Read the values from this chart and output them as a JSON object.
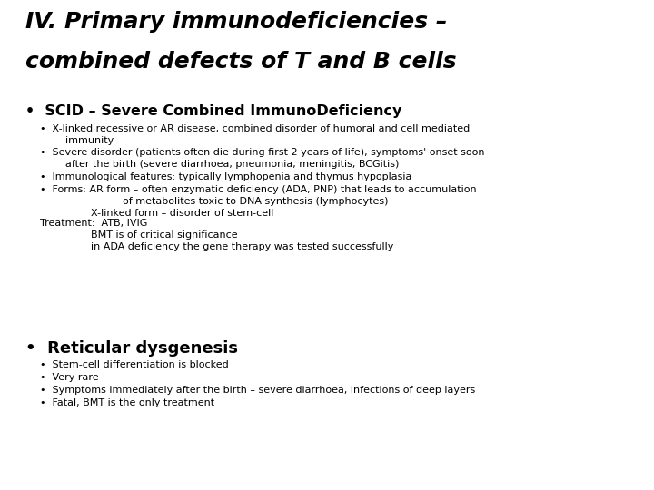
{
  "bg_color": "#ffffff",
  "title_line1": "IV. Primary immunodeficiencies –",
  "title_line2": "combined defects of T and B cells",
  "title_fontsize": 18,
  "title_style": "italic",
  "title_weight": "bold",
  "s1_header": "•  SCID – Severe Combined ImmunoDeficiency",
  "s1_header_fontsize": 11.5,
  "s1_header_weight": "bold",
  "s1_items": [
    "•  X-linked recessive or AR disease, combined disorder of humoral and cell mediated\n        immunity",
    "•  Severe disorder (patients often die during first 2 years of life), symptoms' onset soon\n        after the birth (severe diarrhoea, pneumonia, meningitis, BCGitis)",
    "•  Immunological features: typically lymphopenia and thymus hypoplasia",
    "•  Forms: AR form – often enzymatic deficiency (ADA, PNP) that leads to accumulation\n                          of metabolites toxic to DNA synthesis (lymphocytes)\n                X-linked form – disorder of stem-cell",
    "Treatment:  ATB, IVIG\n                BMT is of critical significance\n                in ADA deficiency the gene therapy was tested successfully"
  ],
  "s2_header": "•  Reticular dysgenesis",
  "s2_header_fontsize": 13,
  "s2_header_weight": "bold",
  "s2_items": [
    "•  Stem-cell differentiation is blocked",
    "•  Very rare",
    "•  Symptoms immediately after the birth – severe diarrhoea, infections of deep layers",
    "•  Fatal, BMT is the only treatment"
  ],
  "body_fontsize": 8.0,
  "font_family": "DejaVu Sans"
}
